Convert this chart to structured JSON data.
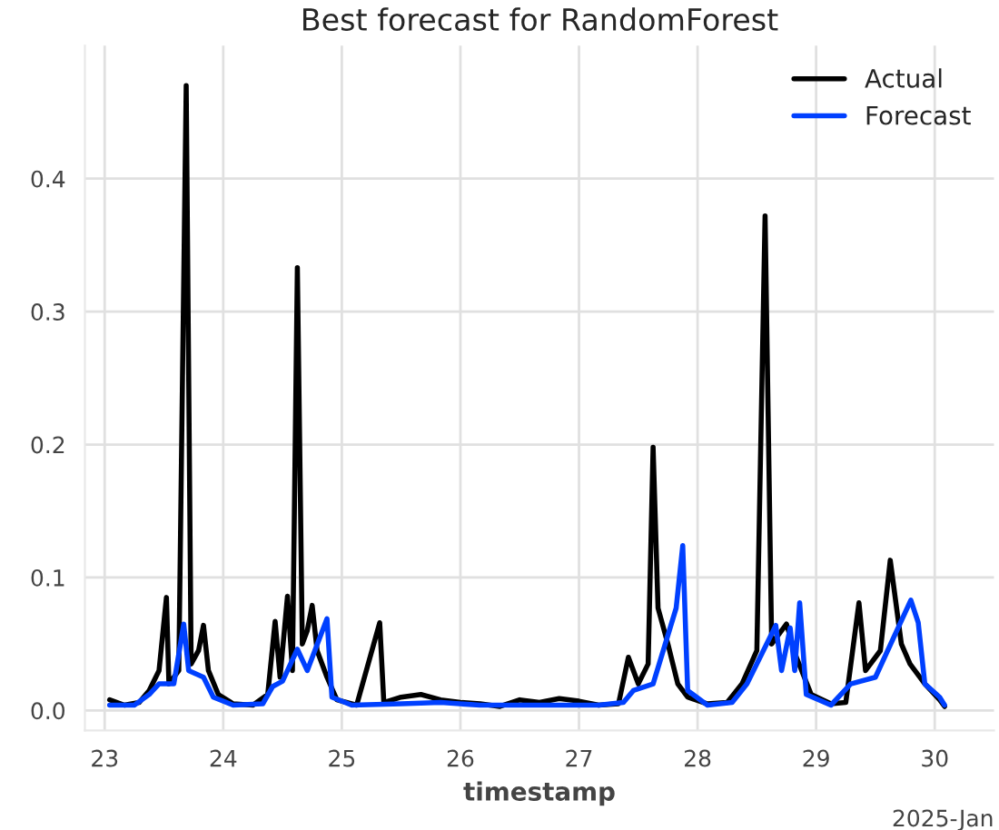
{
  "chart_data": {
    "type": "line",
    "title": "Best forecast for RandomForest",
    "xlabel": "timestamp",
    "annotations": [
      "2025-Jan"
    ],
    "xlim": [
      "2025-01-22T20:00",
      "2025-01-30T12:00"
    ],
    "xticks": [
      {
        "value": "2025-01-23",
        "label": "23"
      },
      {
        "value": "2025-01-24",
        "label": "24"
      },
      {
        "value": "2025-01-25",
        "label": "25"
      },
      {
        "value": "2025-01-26",
        "label": "26"
      },
      {
        "value": "2025-01-27",
        "label": "27"
      },
      {
        "value": "2025-01-28",
        "label": "28"
      },
      {
        "value": "2025-01-29",
        "label": "29"
      },
      {
        "value": "2025-01-30",
        "label": "30"
      }
    ],
    "ylim": [
      -0.015,
      0.5
    ],
    "yticks": [
      {
        "value": 0,
        "label": "0.0"
      },
      0.1,
      0.2,
      0.3,
      0.4
    ],
    "grid": true,
    "legend": "top right",
    "line_style": "solid",
    "series": [
      {
        "name": "Actual",
        "color": "#000000",
        "x": [
          "2025-01-23T01:00",
          "2025-01-23T04:00",
          "2025-01-23T07:00",
          "2025-01-23T09:00",
          "2025-01-23T11:00",
          "2025-01-23T12:30",
          "2025-01-23T13:00",
          "2025-01-23T15:00",
          "2025-01-23T16:30",
          "2025-01-23T17:30",
          "2025-01-23T19:00",
          "2025-01-23T20:00",
          "2025-01-23T21:00",
          "2025-01-23T23:00",
          "2025-01-24T02:00",
          "2025-01-24T06:00",
          "2025-01-24T09:00",
          "2025-01-24T10:30",
          "2025-01-24T11:30",
          "2025-01-24T13:00",
          "2025-01-24T14:00",
          "2025-01-24T15:00",
          "2025-01-24T16:00",
          "2025-01-24T17:00",
          "2025-01-24T18:00",
          "2025-01-24T19:00",
          "2025-01-24T21:00",
          "2025-01-24T23:00",
          "2025-01-25T03:00",
          "2025-01-25T07:40",
          "2025-01-25T08:30",
          "2025-01-25T12:00",
          "2025-01-25T16:00",
          "2025-01-25T20:00",
          "2025-01-26T00:00",
          "2025-01-26T04:00",
          "2025-01-26T08:00",
          "2025-01-26T12:00",
          "2025-01-26T16:00",
          "2025-01-26T20:00",
          "2025-01-27T00:00",
          "2025-01-27T04:00",
          "2025-01-27T08:00",
          "2025-01-27T10:00",
          "2025-01-27T12:00",
          "2025-01-27T14:00",
          "2025-01-27T15:00",
          "2025-01-27T16:00",
          "2025-01-27T18:00",
          "2025-01-27T20:00",
          "2025-01-27T22:00",
          "2025-01-28T02:00",
          "2025-01-28T06:00",
          "2025-01-28T09:00",
          "2025-01-28T12:00",
          "2025-01-28T13:40",
          "2025-01-28T15:00",
          "2025-01-28T18:00",
          "2025-01-28T20:00",
          "2025-01-28T23:00",
          "2025-01-29T03:00",
          "2025-01-29T06:00",
          "2025-01-29T08:40",
          "2025-01-29T10:00",
          "2025-01-29T13:00",
          "2025-01-29T15:00",
          "2025-01-29T17:15",
          "2025-01-29T19:00",
          "2025-01-29T22:00",
          "2025-01-30T01:00",
          "2025-01-30T02:00"
        ],
        "values": [
          0.008,
          0.004,
          0.006,
          0.015,
          0.03,
          0.085,
          0.02,
          0.03,
          0.47,
          0.035,
          0.045,
          0.064,
          0.03,
          0.012,
          0.005,
          0.004,
          0.012,
          0.067,
          0.025,
          0.086,
          0.03,
          0.333,
          0.05,
          0.06,
          0.079,
          0.045,
          0.025,
          0.008,
          0.004,
          0.066,
          0.006,
          0.01,
          0.012,
          0.008,
          0.006,
          0.005,
          0.003,
          0.008,
          0.006,
          0.009,
          0.007,
          0.004,
          0.005,
          0.04,
          0.02,
          0.035,
          0.198,
          0.077,
          0.05,
          0.02,
          0.01,
          0.005,
          0.006,
          0.02,
          0.045,
          0.372,
          0.05,
          0.065,
          0.04,
          0.012,
          0.005,
          0.006,
          0.081,
          0.03,
          0.045,
          0.113,
          0.05,
          0.035,
          0.02,
          0.008,
          0.003
        ]
      },
      {
        "name": "Forecast",
        "color": "#0040ff",
        "x": [
          "2025-01-23T01:00",
          "2025-01-23T06:00",
          "2025-01-23T09:00",
          "2025-01-23T11:00",
          "2025-01-23T14:00",
          "2025-01-23T16:00",
          "2025-01-23T17:00",
          "2025-01-23T20:00",
          "2025-01-23T22:00",
          "2025-01-24T02:00",
          "2025-01-24T08:00",
          "2025-01-24T10:00",
          "2025-01-24T12:00",
          "2025-01-24T15:00",
          "2025-01-24T17:00",
          "2025-01-24T21:00",
          "2025-01-24T22:00",
          "2025-01-25T02:00",
          "2025-01-25T12:00",
          "2025-01-25T20:00",
          "2025-01-26T04:00",
          "2025-01-26T12:00",
          "2025-01-26T20:00",
          "2025-01-27T04:00",
          "2025-01-27T09:00",
          "2025-01-27T11:00",
          "2025-01-27T15:00",
          "2025-01-27T19:40",
          "2025-01-27T21:00",
          "2025-01-27T22:00",
          "2025-01-28T02:00",
          "2025-01-28T07:00",
          "2025-01-28T10:00",
          "2025-01-28T15:50",
          "2025-01-28T17:00",
          "2025-01-28T18:45",
          "2025-01-28T19:40",
          "2025-01-28T20:40",
          "2025-01-28T22:00",
          "2025-01-29T03:00",
          "2025-01-29T07:00",
          "2025-01-29T12:00",
          "2025-01-29T19:10",
          "2025-01-29T20:40",
          "2025-01-29T22:00",
          "2025-01-30T01:00",
          "2025-01-30T02:00"
        ],
        "values": [
          0.004,
          0.004,
          0.012,
          0.02,
          0.02,
          0.065,
          0.03,
          0.025,
          0.01,
          0.004,
          0.005,
          0.018,
          0.022,
          0.046,
          0.03,
          0.069,
          0.01,
          0.004,
          0.005,
          0.006,
          0.004,
          0.004,
          0.004,
          0.004,
          0.006,
          0.015,
          0.02,
          0.077,
          0.124,
          0.015,
          0.004,
          0.006,
          0.02,
          0.064,
          0.03,
          0.062,
          0.03,
          0.081,
          0.012,
          0.004,
          0.02,
          0.025,
          0.083,
          0.066,
          0.02,
          0.01,
          0.004
        ]
      }
    ]
  }
}
